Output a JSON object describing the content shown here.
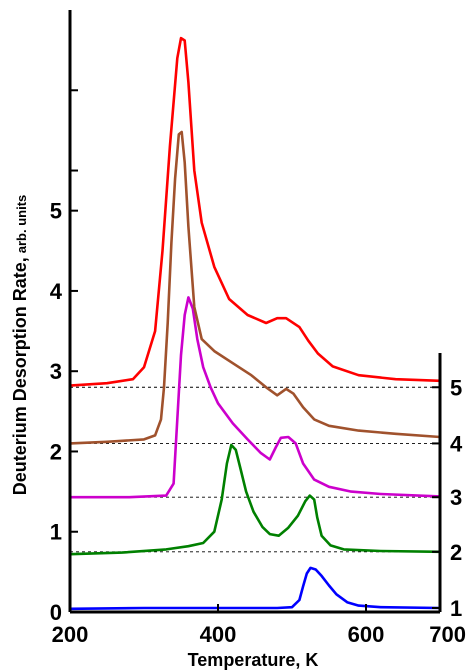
{
  "chart_data": {
    "type": "line",
    "title": "",
    "xlabel": "Temperature, K",
    "ylabel_main": "Deuterium Desorption Rate,",
    "ylabel_unit": "arb. units",
    "xlim": [
      200,
      700
    ],
    "ylim": [
      0,
      7.5
    ],
    "grid": false,
    "x_ticks": [
      {
        "value": 200,
        "label": "200"
      },
      {
        "value": 400,
        "label": "400"
      },
      {
        "value": 600,
        "label": "600"
      },
      {
        "value": 700,
        "label": "700"
      }
    ],
    "left_ticks": [
      {
        "value": 0,
        "label": "0"
      },
      {
        "value": 1,
        "label": "1"
      },
      {
        "value": 2,
        "label": "2"
      },
      {
        "value": 3,
        "label": "3"
      },
      {
        "value": 4,
        "label": "4"
      },
      {
        "value": 5,
        "label": "5"
      }
    ],
    "right_curve_labels": [
      {
        "value": 0.05,
        "label": "1"
      },
      {
        "value": 0.75,
        "label": "2"
      },
      {
        "value": 1.43,
        "label": "3"
      },
      {
        "value": 2.1,
        "label": "4"
      },
      {
        "value": 2.8,
        "label": "5"
      }
    ],
    "reference_lines": [
      0.75,
      1.43,
      2.1,
      2.8
    ],
    "series": [
      {
        "color": "#0000ff",
        "points": [
          [
            200,
            0.04
          ],
          [
            300,
            0.05
          ],
          [
            400,
            0.05
          ],
          [
            480,
            0.05
          ],
          [
            500,
            0.06
          ],
          [
            510,
            0.15
          ],
          [
            515,
            0.32
          ],
          [
            520,
            0.48
          ],
          [
            525,
            0.55
          ],
          [
            532,
            0.53
          ],
          [
            540,
            0.45
          ],
          [
            550,
            0.33
          ],
          [
            560,
            0.22
          ],
          [
            575,
            0.12
          ],
          [
            590,
            0.08
          ],
          [
            620,
            0.06
          ],
          [
            700,
            0.05
          ]
        ]
      },
      {
        "color": "#008000",
        "points": [
          [
            200,
            0.72
          ],
          [
            270,
            0.74
          ],
          [
            330,
            0.78
          ],
          [
            360,
            0.82
          ],
          [
            380,
            0.86
          ],
          [
            395,
            1.0
          ],
          [
            405,
            1.4
          ],
          [
            412,
            1.85
          ],
          [
            418,
            2.08
          ],
          [
            424,
            2.02
          ],
          [
            430,
            1.8
          ],
          [
            438,
            1.5
          ],
          [
            448,
            1.25
          ],
          [
            460,
            1.06
          ],
          [
            470,
            0.97
          ],
          [
            482,
            0.95
          ],
          [
            495,
            1.05
          ],
          [
            508,
            1.2
          ],
          [
            518,
            1.38
          ],
          [
            524,
            1.45
          ],
          [
            530,
            1.4
          ],
          [
            534,
            1.18
          ],
          [
            540,
            0.95
          ],
          [
            552,
            0.83
          ],
          [
            570,
            0.78
          ],
          [
            620,
            0.76
          ],
          [
            700,
            0.75
          ]
        ]
      },
      {
        "color": "#cc00cc",
        "points": [
          [
            200,
            1.43
          ],
          [
            280,
            1.43
          ],
          [
            330,
            1.45
          ],
          [
            340,
            1.6
          ],
          [
            345,
            2.4
          ],
          [
            350,
            3.2
          ],
          [
            355,
            3.7
          ],
          [
            360,
            3.92
          ],
          [
            366,
            3.78
          ],
          [
            372,
            3.4
          ],
          [
            380,
            3.05
          ],
          [
            390,
            2.8
          ],
          [
            400,
            2.6
          ],
          [
            420,
            2.35
          ],
          [
            440,
            2.15
          ],
          [
            458,
            1.98
          ],
          [
            470,
            1.9
          ],
          [
            478,
            2.05
          ],
          [
            485,
            2.17
          ],
          [
            495,
            2.18
          ],
          [
            505,
            2.1
          ],
          [
            515,
            1.85
          ],
          [
            530,
            1.65
          ],
          [
            550,
            1.56
          ],
          [
            580,
            1.5
          ],
          [
            620,
            1.47
          ],
          [
            700,
            1.44
          ]
        ]
      },
      {
        "color": "#a0522d",
        "points": [
          [
            200,
            2.1
          ],
          [
            250,
            2.12
          ],
          [
            300,
            2.15
          ],
          [
            315,
            2.2
          ],
          [
            323,
            2.4
          ],
          [
            327,
            2.8
          ],
          [
            332,
            3.6
          ],
          [
            337,
            4.6
          ],
          [
            342,
            5.4
          ],
          [
            347,
            5.95
          ],
          [
            351,
            5.98
          ],
          [
            355,
            5.6
          ],
          [
            360,
            4.8
          ],
          [
            368,
            3.8
          ],
          [
            378,
            3.4
          ],
          [
            395,
            3.25
          ],
          [
            420,
            3.1
          ],
          [
            445,
            2.95
          ],
          [
            465,
            2.8
          ],
          [
            480,
            2.7
          ],
          [
            492,
            2.78
          ],
          [
            502,
            2.72
          ],
          [
            515,
            2.55
          ],
          [
            530,
            2.4
          ],
          [
            550,
            2.32
          ],
          [
            590,
            2.26
          ],
          [
            640,
            2.22
          ],
          [
            700,
            2.18
          ]
        ]
      },
      {
        "color": "#ff0000",
        "points": [
          [
            200,
            2.82
          ],
          [
            250,
            2.85
          ],
          [
            285,
            2.9
          ],
          [
            300,
            3.05
          ],
          [
            315,
            3.5
          ],
          [
            325,
            4.5
          ],
          [
            335,
            5.8
          ],
          [
            345,
            6.9
          ],
          [
            350,
            7.15
          ],
          [
            355,
            7.12
          ],
          [
            360,
            6.6
          ],
          [
            368,
            5.5
          ],
          [
            378,
            4.85
          ],
          [
            395,
            4.3
          ],
          [
            415,
            3.9
          ],
          [
            440,
            3.7
          ],
          [
            465,
            3.6
          ],
          [
            480,
            3.66
          ],
          [
            492,
            3.66
          ],
          [
            510,
            3.55
          ],
          [
            522,
            3.38
          ],
          [
            535,
            3.22
          ],
          [
            555,
            3.06
          ],
          [
            590,
            2.95
          ],
          [
            640,
            2.9
          ],
          [
            700,
            2.88
          ]
        ]
      }
    ]
  }
}
